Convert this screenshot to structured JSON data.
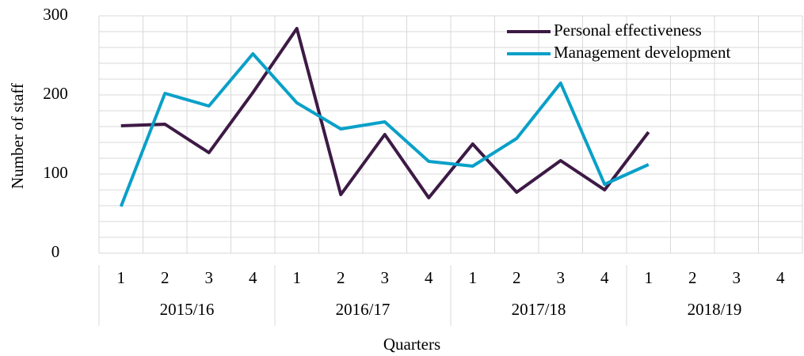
{
  "chart_data": {
    "type": "line",
    "x_label": "Quarters",
    "y_label": "Number of staff",
    "categories": [
      "1",
      "2",
      "3",
      "4",
      "1",
      "2",
      "3",
      "4",
      "1",
      "2",
      "3",
      "4",
      "1",
      "2",
      "3",
      "4"
    ],
    "groups": [
      "2015/16",
      "2016/17",
      "2017/18",
      "2018/19"
    ],
    "series": [
      {
        "name": "Personal effectiveness",
        "color": "#3d1a45",
        "values": [
          161,
          163,
          127,
          203,
          284,
          74,
          150,
          70,
          138,
          77,
          117,
          80,
          153,
          null,
          null,
          null
        ]
      },
      {
        "name": "Management development",
        "color": "#0aa0c8",
        "values": [
          59,
          202,
          186,
          252,
          190,
          157,
          166,
          116,
          110,
          145,
          215,
          87,
          112,
          null,
          null,
          null
        ]
      }
    ],
    "ylim": [
      0,
      300
    ],
    "yticks": [
      0,
      100,
      200,
      300
    ],
    "minor_yticks": [
      20,
      40,
      60,
      80,
      120,
      140,
      160,
      180,
      220,
      240,
      260,
      280
    ],
    "grid": true,
    "legend": "top-right"
  }
}
